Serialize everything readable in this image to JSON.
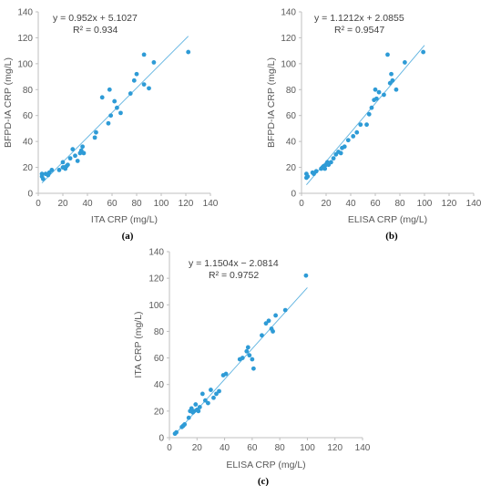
{
  "colors": {
    "points": "#2e9bd6",
    "trendline": "#5eb3e0",
    "axis": "#bfbfbf",
    "text": "#595959"
  },
  "chart_data": [
    {
      "type": "scatter",
      "panel_label": "(a)",
      "xlabel": "ITA CRP (mg/L)",
      "ylabel": "BFPD-IA CRP (mg/L)",
      "xlim": [
        0,
        140
      ],
      "ylim": [
        0,
        140
      ],
      "xticks": [
        0,
        20,
        40,
        60,
        80,
        100,
        120,
        140
      ],
      "yticks": [
        0,
        20,
        40,
        60,
        80,
        100,
        120,
        140
      ],
      "grid": false,
      "equation": "y = 0.952x + 5.1027",
      "r_squared": "R² = 0.934",
      "trendline": {
        "slope": 0.952,
        "intercept": 5.1027,
        "x_range": [
          3,
          122
        ]
      },
      "points": [
        [
          3,
          15
        ],
        [
          3,
          13
        ],
        [
          4,
          11
        ],
        [
          6,
          15
        ],
        [
          8,
          14
        ],
        [
          9,
          16
        ],
        [
          11,
          18
        ],
        [
          17,
          18
        ],
        [
          20,
          20
        ],
        [
          20,
          24
        ],
        [
          21,
          20
        ],
        [
          22,
          19
        ],
        [
          23,
          21
        ],
        [
          24,
          22
        ],
        [
          26,
          27
        ],
        [
          28,
          34
        ],
        [
          30,
          29
        ],
        [
          32,
          25
        ],
        [
          34,
          31
        ],
        [
          35,
          33
        ],
        [
          36,
          36
        ],
        [
          37,
          31
        ],
        [
          46,
          43
        ],
        [
          47,
          47
        ],
        [
          52,
          74
        ],
        [
          57,
          54
        ],
        [
          58,
          80
        ],
        [
          59,
          60
        ],
        [
          62,
          71
        ],
        [
          64,
          66
        ],
        [
          67,
          62
        ],
        [
          75,
          77
        ],
        [
          78,
          87
        ],
        [
          80,
          92
        ],
        [
          86,
          84
        ],
        [
          86,
          107
        ],
        [
          90,
          81
        ],
        [
          94,
          101
        ],
        [
          122,
          109
        ]
      ]
    },
    {
      "type": "scatter",
      "panel_label": "(b)",
      "xlabel": "ELISA CRP (mg/L)",
      "ylabel": "BFPD-IA CRP (mg/L)",
      "xlim": [
        0,
        140
      ],
      "ylim": [
        0,
        140
      ],
      "xticks": [
        0,
        20,
        40,
        60,
        80,
        100,
        120,
        140
      ],
      "yticks": [
        0,
        20,
        40,
        60,
        80,
        100,
        120,
        140
      ],
      "grid": false,
      "equation": "y = 1.1212x + 2.0855",
      "r_squared": "R² = 0.9547",
      "trendline": {
        "slope": 1.1212,
        "intercept": 2.0855,
        "x_range": [
          4,
          100
        ]
      },
      "points": [
        [
          4,
          15
        ],
        [
          4,
          12
        ],
        [
          5,
          13
        ],
        [
          9,
          16
        ],
        [
          10,
          15
        ],
        [
          12,
          17
        ],
        [
          16,
          19
        ],
        [
          17,
          20
        ],
        [
          18,
          21
        ],
        [
          19,
          19
        ],
        [
          20,
          22
        ],
        [
          21,
          24
        ],
        [
          22,
          22
        ],
        [
          24,
          24
        ],
        [
          26,
          27
        ],
        [
          28,
          30
        ],
        [
          30,
          32
        ],
        [
          32,
          31
        ],
        [
          33,
          35
        ],
        [
          35,
          36
        ],
        [
          38,
          41
        ],
        [
          42,
          44
        ],
        [
          45,
          47
        ],
        [
          48,
          53
        ],
        [
          53,
          53
        ],
        [
          55,
          61
        ],
        [
          57,
          66
        ],
        [
          59,
          72
        ],
        [
          60,
          80
        ],
        [
          61,
          73
        ],
        [
          63,
          78
        ],
        [
          67,
          76
        ],
        [
          70,
          107
        ],
        [
          72,
          85
        ],
        [
          73,
          92
        ],
        [
          74,
          87
        ],
        [
          77,
          80
        ],
        [
          84,
          101
        ],
        [
          99,
          109
        ]
      ]
    },
    {
      "type": "scatter",
      "panel_label": "(c)",
      "xlabel": "ELISA CRP (mg/L)",
      "ylabel": "ITA CRP (mg/L)",
      "xlim": [
        0,
        140
      ],
      "ylim": [
        0,
        140
      ],
      "xticks": [
        0,
        20,
        40,
        60,
        80,
        100,
        120,
        140
      ],
      "yticks": [
        0,
        20,
        40,
        60,
        80,
        100,
        120,
        140
      ],
      "grid": false,
      "equation": "y = 1.1504x − 2.0814",
      "r_squared": "R² = 0.9752",
      "trendline": {
        "slope": 1.1504,
        "intercept": -2.0814,
        "x_range": [
          4,
          100
        ]
      },
      "points": [
        [
          4,
          3
        ],
        [
          5,
          4
        ],
        [
          9,
          8
        ],
        [
          10,
          9
        ],
        [
          11,
          10
        ],
        [
          14,
          15
        ],
        [
          15,
          20
        ],
        [
          16,
          22
        ],
        [
          17,
          19
        ],
        [
          18,
          20
        ],
        [
          19,
          25
        ],
        [
          20,
          21
        ],
        [
          21,
          20
        ],
        [
          22,
          23
        ],
        [
          24,
          33
        ],
        [
          26,
          28
        ],
        [
          28,
          26
        ],
        [
          30,
          36
        ],
        [
          32,
          30
        ],
        [
          34,
          33
        ],
        [
          36,
          35
        ],
        [
          39,
          47
        ],
        [
          41,
          48
        ],
        [
          51,
          59
        ],
        [
          53,
          60
        ],
        [
          56,
          65
        ],
        [
          57,
          68
        ],
        [
          58,
          62
        ],
        [
          60,
          59
        ],
        [
          61,
          52
        ],
        [
          67,
          77
        ],
        [
          70,
          86
        ],
        [
          72,
          88
        ],
        [
          74,
          82
        ],
        [
          75,
          80
        ],
        [
          77,
          92
        ],
        [
          84,
          96
        ],
        [
          99,
          122
        ]
      ]
    }
  ]
}
